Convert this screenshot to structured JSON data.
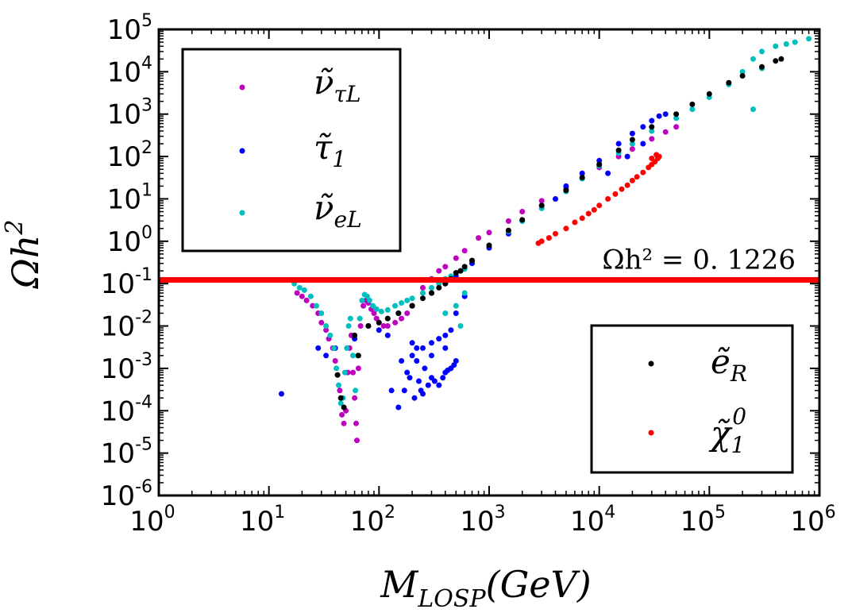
{
  "chart_data": {
    "type": "scatter",
    "xscale": "log",
    "yscale": "log",
    "xlim": [
      1,
      1000000
    ],
    "ylim": [
      1e-06,
      100000
    ],
    "xlabel": {
      "main": "M",
      "sub": "LOSP",
      "rest": "(GeV)"
    },
    "ylabel": {
      "main": "Ωh",
      "sup": "2"
    },
    "xticks": [
      {
        "base": "10",
        "exp": "0",
        "value": 1
      },
      {
        "base": "10",
        "exp": "1",
        "value": 10
      },
      {
        "base": "10",
        "exp": "2",
        "value": 100
      },
      {
        "base": "10",
        "exp": "3",
        "value": 1000
      },
      {
        "base": "10",
        "exp": "4",
        "value": 10000
      },
      {
        "base": "10",
        "exp": "5",
        "value": 100000
      },
      {
        "base": "10",
        "exp": "6",
        "value": 1000000
      }
    ],
    "yticks": [
      {
        "base": "10",
        "exp": "-6",
        "value": 1e-06
      },
      {
        "base": "10",
        "exp": "-5",
        "value": 1e-05
      },
      {
        "base": "10",
        "exp": "-4",
        "value": 0.0001
      },
      {
        "base": "10",
        "exp": "-3",
        "value": 0.001
      },
      {
        "base": "10",
        "exp": "-2",
        "value": 0.01
      },
      {
        "base": "10",
        "exp": "-1",
        "value": 0.1
      },
      {
        "base": "10",
        "exp": "0",
        "value": 1
      },
      {
        "base": "10",
        "exp": "1",
        "value": 10
      },
      {
        "base": "10",
        "exp": "2",
        "value": 100
      },
      {
        "base": "10",
        "exp": "3",
        "value": 1000
      },
      {
        "base": "10",
        "exp": "4",
        "value": 10000
      },
      {
        "base": "10",
        "exp": "5",
        "value": 100000
      }
    ],
    "hline": {
      "y": 0.1226,
      "color": "#ff0000",
      "label": "Ωh² = 0. 1226"
    },
    "legends": [
      {
        "placement": "top-left",
        "entries": [
          {
            "series": "nu_tau_L",
            "main": "ν̃",
            "sub": "τL"
          },
          {
            "series": "stau_1",
            "main": "τ̃",
            "sub": "1"
          },
          {
            "series": "nu_e_L",
            "main": "ν̃",
            "sub": "eL"
          }
        ]
      },
      {
        "placement": "bottom-right",
        "entries": [
          {
            "series": "e_R",
            "main": "ẽ",
            "sub": "R",
            "sup": ""
          },
          {
            "series": "chi_1_0",
            "main": "χ̃",
            "sub": "1",
            "sup": "0"
          }
        ]
      }
    ],
    "series": [
      {
        "name": "nu_tau_L",
        "color": "#bf00bf",
        "points": [
          [
            18,
            0.06
          ],
          [
            20,
            0.05
          ],
          [
            22,
            0.04
          ],
          [
            25,
            0.03
          ],
          [
            28,
            0.02
          ],
          [
            30,
            0.012
          ],
          [
            33,
            0.008
          ],
          [
            35,
            0.005
          ],
          [
            38,
            0.003
          ],
          [
            40,
            0.0015
          ],
          [
            42,
            0.0007
          ],
          [
            44,
            0.0003
          ],
          [
            46,
            8e-05
          ],
          [
            48,
            5e-05
          ],
          [
            50,
            0.0001
          ],
          [
            52,
            0.0008
          ],
          [
            54,
            0.003
          ],
          [
            56,
            0.006
          ],
          [
            58,
            0.0008
          ],
          [
            60,
            0.0002
          ],
          [
            62,
            5e-05
          ],
          [
            63,
            2e-05
          ],
          [
            65,
            0.001
          ],
          [
            68,
            0.01
          ],
          [
            72,
            0.03
          ],
          [
            76,
            0.04
          ],
          [
            80,
            0.035
          ],
          [
            85,
            0.025
          ],
          [
            90,
            0.02
          ],
          [
            95,
            0.015
          ],
          [
            100,
            0.012
          ],
          [
            110,
            0.01
          ],
          [
            120,
            0.01
          ],
          [
            140,
            0.012
          ],
          [
            160,
            0.015
          ],
          [
            180,
            0.02
          ],
          [
            200,
            0.03
          ],
          [
            250,
            0.08
          ],
          [
            300,
            0.13
          ],
          [
            350,
            0.2
          ],
          [
            400,
            0.25
          ],
          [
            500,
            0.4
          ],
          [
            600,
            0.6
          ],
          [
            800,
            1.2
          ],
          [
            1000,
            1.6
          ],
          [
            1500,
            3
          ],
          [
            2000,
            5
          ],
          [
            3000,
            9
          ],
          [
            5000,
            18
          ],
          [
            7000,
            30
          ],
          [
            10000,
            55
          ],
          [
            15000,
            100
          ],
          [
            20000,
            150
          ],
          [
            30000,
            260
          ],
          [
            40000,
            380
          ],
          [
            50000,
            500
          ]
        ]
      },
      {
        "name": "stau_1",
        "color": "#0000ff",
        "points": [
          [
            13,
            0.00025
          ],
          [
            28,
            0.003
          ],
          [
            33,
            0.002
          ],
          [
            40,
            0.003
          ],
          [
            60,
            0.005
          ],
          [
            80,
            0.01
          ],
          [
            100,
            0.008
          ],
          [
            120,
            0.006
          ],
          [
            130,
            0.0003
          ],
          [
            150,
            0.00012
          ],
          [
            160,
            0.0015
          ],
          [
            170,
            0.0003
          ],
          [
            180,
            0.0008
          ],
          [
            190,
            0.0006
          ],
          [
            200,
            0.004
          ],
          [
            210,
            0.0002
          ],
          [
            220,
            0.0015
          ],
          [
            230,
            0.0005
          ],
          [
            240,
            0.0003
          ],
          [
            250,
            0.00025
          ],
          [
            260,
            0.001
          ],
          [
            280,
            0.0004
          ],
          [
            300,
            0.0006
          ],
          [
            320,
            0.0005
          ],
          [
            350,
            0.0004
          ],
          [
            380,
            0.0006
          ],
          [
            400,
            0.0008
          ],
          [
            420,
            0.0009
          ],
          [
            450,
            0.001
          ],
          [
            480,
            0.0012
          ],
          [
            500,
            0.0015
          ],
          [
            250,
            0.003
          ],
          [
            300,
            0.004
          ],
          [
            350,
            0.005
          ],
          [
            400,
            0.006
          ],
          [
            450,
            0.008
          ],
          [
            300,
            0.002
          ],
          [
            400,
            0.003
          ],
          [
            200,
            0.002
          ],
          [
            220,
            0.003
          ],
          [
            500,
            0.02
          ],
          [
            600,
            0.05
          ],
          [
            150,
            0.02
          ],
          [
            200,
            0.03
          ],
          [
            300,
            0.06
          ],
          [
            400,
            0.1
          ],
          [
            500,
            0.15
          ],
          [
            700,
            0.3
          ],
          [
            1000,
            0.7
          ],
          [
            1500,
            1.5
          ],
          [
            2000,
            3
          ],
          [
            3000,
            6
          ],
          [
            4000,
            10
          ],
          [
            5000,
            20
          ],
          [
            7000,
            40
          ],
          [
            10000,
            80
          ],
          [
            15000,
            200
          ],
          [
            20000,
            350
          ],
          [
            25000,
            500
          ],
          [
            30000,
            700
          ],
          [
            35000,
            900
          ],
          [
            40000,
            1000
          ],
          [
            12000,
            40
          ],
          [
            18000,
            100
          ],
          [
            25000,
            200
          ]
        ]
      },
      {
        "name": "nu_e_L",
        "color": "#00bfbf",
        "points": [
          [
            17,
            0.1
          ],
          [
            19,
            0.08
          ],
          [
            21,
            0.07
          ],
          [
            24,
            0.05
          ],
          [
            27,
            0.03
          ],
          [
            30,
            0.02
          ],
          [
            33,
            0.01
          ],
          [
            36,
            0.006
          ],
          [
            39,
            0.003
          ],
          [
            41,
            0.001
          ],
          [
            43,
            0.0004
          ],
          [
            45,
            0.00015
          ],
          [
            47,
            0.0002
          ],
          [
            49,
            0.0008
          ],
          [
            51,
            0.003
          ],
          [
            53,
            0.01
          ],
          [
            55,
            0.015
          ],
          [
            58,
            0.002
          ],
          [
            61,
            0.0003
          ],
          [
            64,
            0.002
          ],
          [
            67,
            0.015
          ],
          [
            70,
            0.04
          ],
          [
            74,
            0.055
          ],
          [
            78,
            0.05
          ],
          [
            82,
            0.04
          ],
          [
            88,
            0.03
          ],
          [
            95,
            0.025
          ],
          [
            105,
            0.022
          ],
          [
            120,
            0.024
          ],
          [
            140,
            0.03
          ],
          [
            160,
            0.035
          ],
          [
            180,
            0.04
          ],
          [
            200,
            0.045
          ],
          [
            250,
            0.06
          ],
          [
            300,
            0.08
          ],
          [
            350,
            0.1
          ],
          [
            400,
            0.13
          ],
          [
            450,
            0.15
          ],
          [
            500,
            0.18
          ],
          [
            550,
            0.2
          ],
          [
            600,
            0.22
          ],
          [
            400,
            0.02
          ],
          [
            500,
            0.03
          ],
          [
            600,
            0.06
          ],
          [
            550,
            0.01
          ],
          [
            700,
            0.35
          ],
          [
            1000,
            0.8
          ],
          [
            1500,
            1.7
          ],
          [
            2000,
            3
          ],
          [
            3000,
            6
          ],
          [
            5000,
            15
          ],
          [
            7000,
            30
          ],
          [
            10000,
            60
          ],
          [
            15000,
            120
          ],
          [
            20000,
            200
          ],
          [
            30000,
            400
          ],
          [
            50000,
            800
          ],
          [
            70000,
            1300
          ],
          [
            100000,
            2500
          ],
          [
            150000,
            5000
          ],
          [
            200000,
            10000
          ],
          [
            250000,
            20000
          ],
          [
            300000,
            30000
          ],
          [
            400000,
            40000
          ],
          [
            600000,
            50000
          ],
          [
            800000,
            60000
          ],
          [
            250000,
            1300
          ],
          [
            300000,
            12000
          ],
          [
            500000,
            45000
          ]
        ]
      },
      {
        "name": "e_R",
        "color": "#000000",
        "points": [
          [
            42,
            0.0007
          ],
          [
            45,
            0.0002
          ],
          [
            48,
            0.00012
          ],
          [
            60,
            0.006
          ],
          [
            65,
            0.002
          ],
          [
            80,
            0.01
          ],
          [
            100,
            0.012
          ],
          [
            120,
            0.015
          ],
          [
            150,
            0.02
          ],
          [
            200,
            0.03
          ],
          [
            250,
            0.045
          ],
          [
            300,
            0.06
          ],
          [
            350,
            0.08
          ],
          [
            400,
            0.1
          ],
          [
            450,
            0.13
          ],
          [
            500,
            0.18
          ],
          [
            550,
            0.2
          ],
          [
            600,
            0.25
          ],
          [
            700,
            0.35
          ],
          [
            1000,
            0.8
          ],
          [
            1500,
            1.8
          ],
          [
            2000,
            3.2
          ],
          [
            3000,
            7
          ],
          [
            5000,
            16
          ],
          [
            7000,
            32
          ],
          [
            10000,
            65
          ],
          [
            15000,
            140
          ],
          [
            20000,
            250
          ],
          [
            30000,
            500
          ],
          [
            50000,
            1000
          ],
          [
            70000,
            1700
          ],
          [
            100000,
            3000
          ],
          [
            150000,
            5500
          ],
          [
            200000,
            8000
          ],
          [
            300000,
            13000
          ],
          [
            400000,
            18000
          ],
          [
            450000,
            20000
          ]
        ]
      },
      {
        "name": "chi_1_0",
        "color": "#ff0000",
        "points": [
          [
            2800,
            0.9
          ],
          [
            3000,
            1.0
          ],
          [
            3500,
            1.2
          ],
          [
            4000,
            1.5
          ],
          [
            5000,
            2
          ],
          [
            6000,
            2.8
          ],
          [
            7000,
            3.5
          ],
          [
            8000,
            4.5
          ],
          [
            9000,
            5.5
          ],
          [
            10000,
            7
          ],
          [
            12000,
            10
          ],
          [
            14000,
            13
          ],
          [
            16000,
            17
          ],
          [
            18000,
            21
          ],
          [
            20000,
            27
          ],
          [
            22000,
            33
          ],
          [
            25000,
            42
          ],
          [
            28000,
            55
          ],
          [
            30000,
            65
          ],
          [
            32000,
            75
          ],
          [
            34000,
            90
          ],
          [
            35000,
            100
          ],
          [
            33000,
            110
          ],
          [
            30000,
            90
          ]
        ]
      }
    ]
  }
}
